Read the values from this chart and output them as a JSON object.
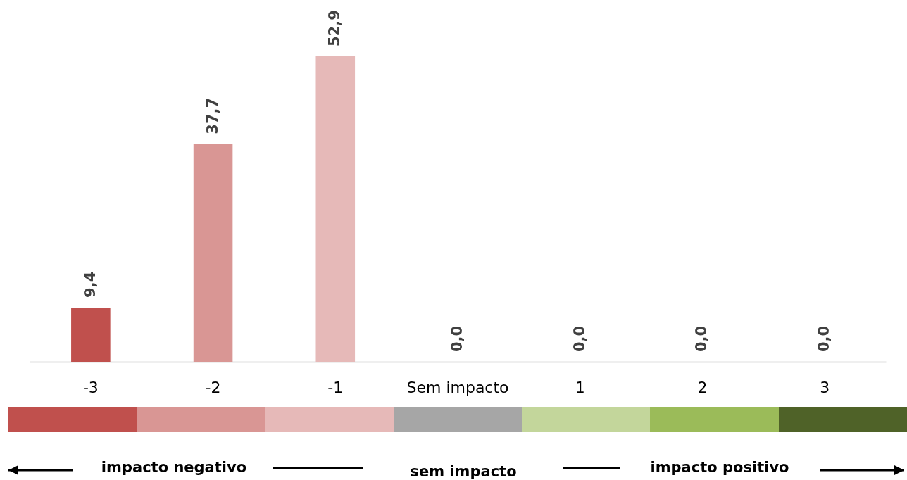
{
  "chart_data": {
    "type": "bar",
    "categories": [
      "-3",
      "-2",
      "-1",
      "Sem impacto",
      "1",
      "2",
      "3"
    ],
    "values": [
      9.4,
      37.7,
      52.9,
      0.0,
      0.0,
      0.0,
      0.0
    ],
    "value_labels": [
      "9,4",
      "37,7",
      "52,9",
      "0,0",
      "0,0",
      "0,0",
      "0,0"
    ],
    "colors": [
      "#c0504d",
      "#d99694",
      "#e6b9b8",
      "#a6a6a6",
      "#c3d69b",
      "#9bbb59",
      "#4f6228"
    ],
    "annotations": [
      "impacto negativo",
      "sem impacto",
      "impacto positivo"
    ]
  }
}
